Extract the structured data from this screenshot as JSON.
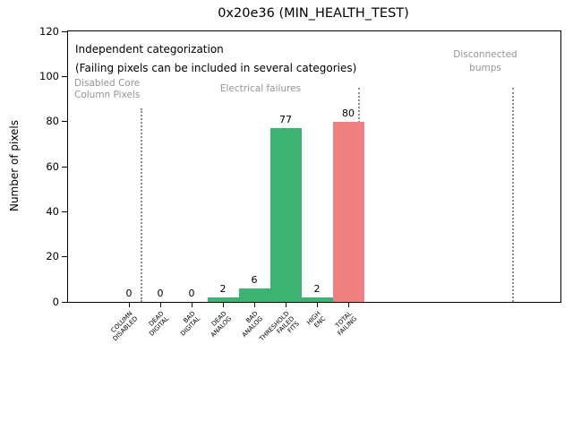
{
  "chart_data": {
    "type": "bar",
    "title": "0x20e36 (MIN_HEALTH_TEST)",
    "xlabel": "",
    "ylabel": "Number of pixels",
    "ylim": [
      0,
      120
    ],
    "yticks": [
      0,
      20,
      40,
      60,
      80,
      100,
      120
    ],
    "grid": false,
    "legend": "none",
    "categories": [
      "COLUMN\nDISABLED",
      "DEAD\nDIGITAL",
      "BAD\nDIGITAL",
      "DEAD\nANALOG",
      "BAD\nANALOG",
      "THRESHOLD\nFAILED\nFITS",
      "HIGH\nENC",
      "TOTAL\nFAILING"
    ],
    "values": [
      0,
      0,
      0,
      2,
      6,
      77,
      2,
      80
    ],
    "bar_value_labels": [
      "0",
      "0",
      "0",
      "2",
      "6",
      "77",
      "2",
      "80"
    ],
    "bar_colors": [
      "#3cb371",
      "#3cb371",
      "#3cb371",
      "#3cb371",
      "#3cb371",
      "#3cb371",
      "#3cb371",
      "#f08080"
    ],
    "colors": {
      "category_bar_green": "#3cb371",
      "total_bar_red": "#f08080",
      "annotation_gray": "#949494",
      "annotation_black": "#000000",
      "separator_gray": "#8c8c8c"
    },
    "annotations": [
      {
        "id": "independent-categorization",
        "lines": [
          "Independent categorization"
        ],
        "color": "#000000",
        "size": 12,
        "align": "left",
        "x": 8,
        "top": 10
      },
      {
        "id": "categorization-note",
        "lines": [
          "(Failing pixels can be included in several categories)"
        ],
        "color": "#000000",
        "size": 12,
        "align": "left",
        "x": 8,
        "top": 31
      },
      {
        "id": "disabled-core-column-pixels",
        "lines": [
          "Disabled Core",
          "Column Pixels"
        ],
        "color": "#949494",
        "size": 10.5,
        "align": "left",
        "x": 7,
        "top": 52
      },
      {
        "id": "electrical-failures",
        "lines": [
          "Electrical failures"
        ],
        "color": "#949494",
        "size": 10.5,
        "align": "center",
        "x": 215,
        "top": 57
      },
      {
        "id": "disconnected-bumps",
        "lines": [
          "Disconnected",
          "bumps"
        ],
        "color": "#949494",
        "size": 10.5,
        "align": "center",
        "x": 466,
        "top": 19
      }
    ],
    "separators": [
      {
        "x": 82,
        "top": 86
      },
      {
        "x": 325,
        "top": 63
      },
      {
        "x": 497,
        "top": 63
      }
    ]
  }
}
